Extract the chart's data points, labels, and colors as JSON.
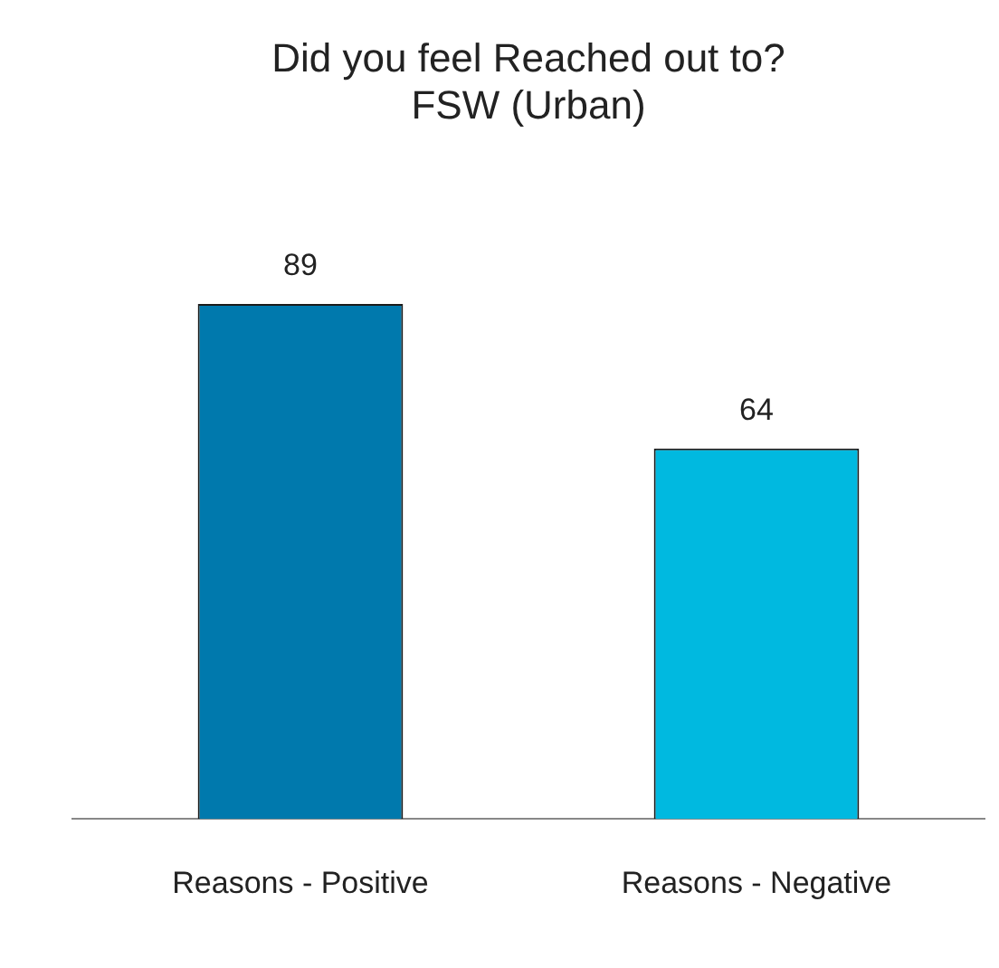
{
  "chart_data": {
    "type": "bar",
    "title": "Did you feel Reached out to?\nFSW (Urban)",
    "categories": [
      "Reasons - Positive",
      "Reasons - Negative"
    ],
    "values": [
      89,
      64
    ],
    "colors": [
      "#0079ad",
      "#00b9e0"
    ],
    "data_labels": true,
    "grid": false,
    "legend": false
  }
}
